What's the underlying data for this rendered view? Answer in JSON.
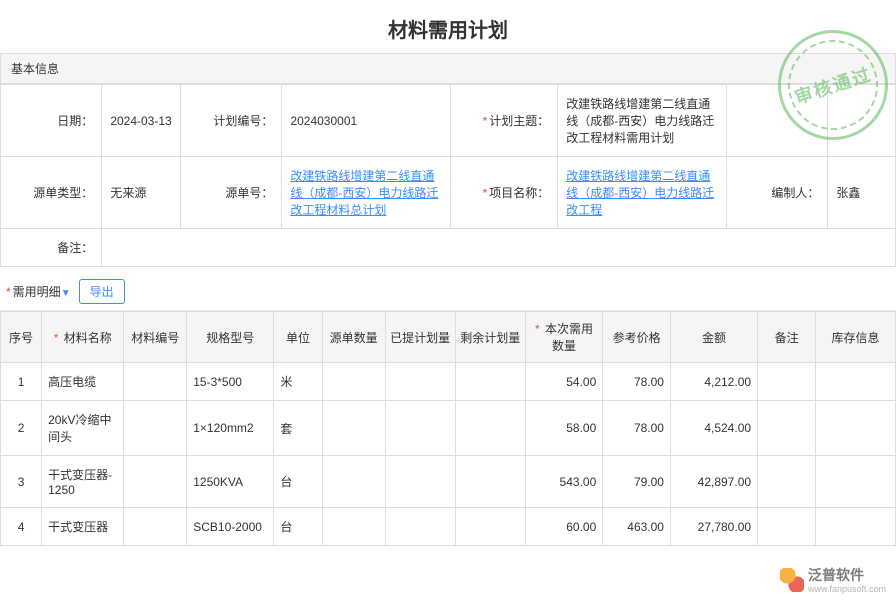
{
  "title": "材料需用计划",
  "stamp_text": "审核通过",
  "section_basic": "基本信息",
  "labels": {
    "date": "日期：",
    "plan_no": "计划编号：",
    "plan_subject": "计划主题：",
    "source_type": "源单类型：",
    "source_no": "源单号：",
    "project_name": "项目名称：",
    "creator": "编制人：",
    "remark": "备注："
  },
  "values": {
    "date": "2024-03-13",
    "plan_no": "2024030001",
    "plan_subject": "改建铁路线增建第二线直通线（成都-西安）电力线路迁改工程材料需用计划",
    "source_type": "无来源",
    "source_no": "改建铁路线增建第二线直通线（成都-西安）电力线路迁改工程材料总计划",
    "project_name": "改建铁路线增建第二线直通线（成都-西安）电力线路迁改工程",
    "creator": "张鑫",
    "remark": ""
  },
  "detail_label": "需用明细",
  "export_label": "导出",
  "columns": [
    "序号",
    "材料名称",
    "材料编号",
    "规格型号",
    "单位",
    "源单数量",
    "已提计划量",
    "剩余计划量",
    "本次需用数量",
    "参考价格",
    "金额",
    "备注",
    "库存信息"
  ],
  "required_cols": {
    "1": true,
    "8": true
  },
  "col_widths": [
    "34px",
    "68px",
    "52px",
    "72px",
    "40px",
    "52px",
    "58px",
    "58px",
    "64px",
    "56px",
    "72px",
    "48px",
    "66px"
  ],
  "rows": [
    {
      "idx": "1",
      "name": "高压电缆",
      "code": "",
      "spec": "15-3*500",
      "unit": "米",
      "src": "",
      "planned": "",
      "remain": "",
      "qty": "54.00",
      "price": "78.00",
      "amount": "4,212.00",
      "note": "",
      "stock": ""
    },
    {
      "idx": "2",
      "name": "20kV冷缩中间头",
      "code": "",
      "spec": "1×120mm2",
      "unit": "套",
      "src": "",
      "planned": "",
      "remain": "",
      "qty": "58.00",
      "price": "78.00",
      "amount": "4,524.00",
      "note": "",
      "stock": ""
    },
    {
      "idx": "3",
      "name": "干式变压器-1250",
      "code": "",
      "spec": "1250KVA",
      "unit": "台",
      "src": "",
      "planned": "",
      "remain": "",
      "qty": "543.00",
      "price": "79.00",
      "amount": "42,897.00",
      "note": "",
      "stock": ""
    },
    {
      "idx": "4",
      "name": "干式变压器",
      "code": "",
      "spec": "SCB10-2000",
      "unit": "台",
      "src": "",
      "planned": "",
      "remain": "",
      "qty": "60.00",
      "price": "463.00",
      "amount": "27,780.00",
      "note": "",
      "stock": ""
    }
  ],
  "watermark": {
    "brand": "泛普软件",
    "sub": "www.fanpusoft.com"
  }
}
